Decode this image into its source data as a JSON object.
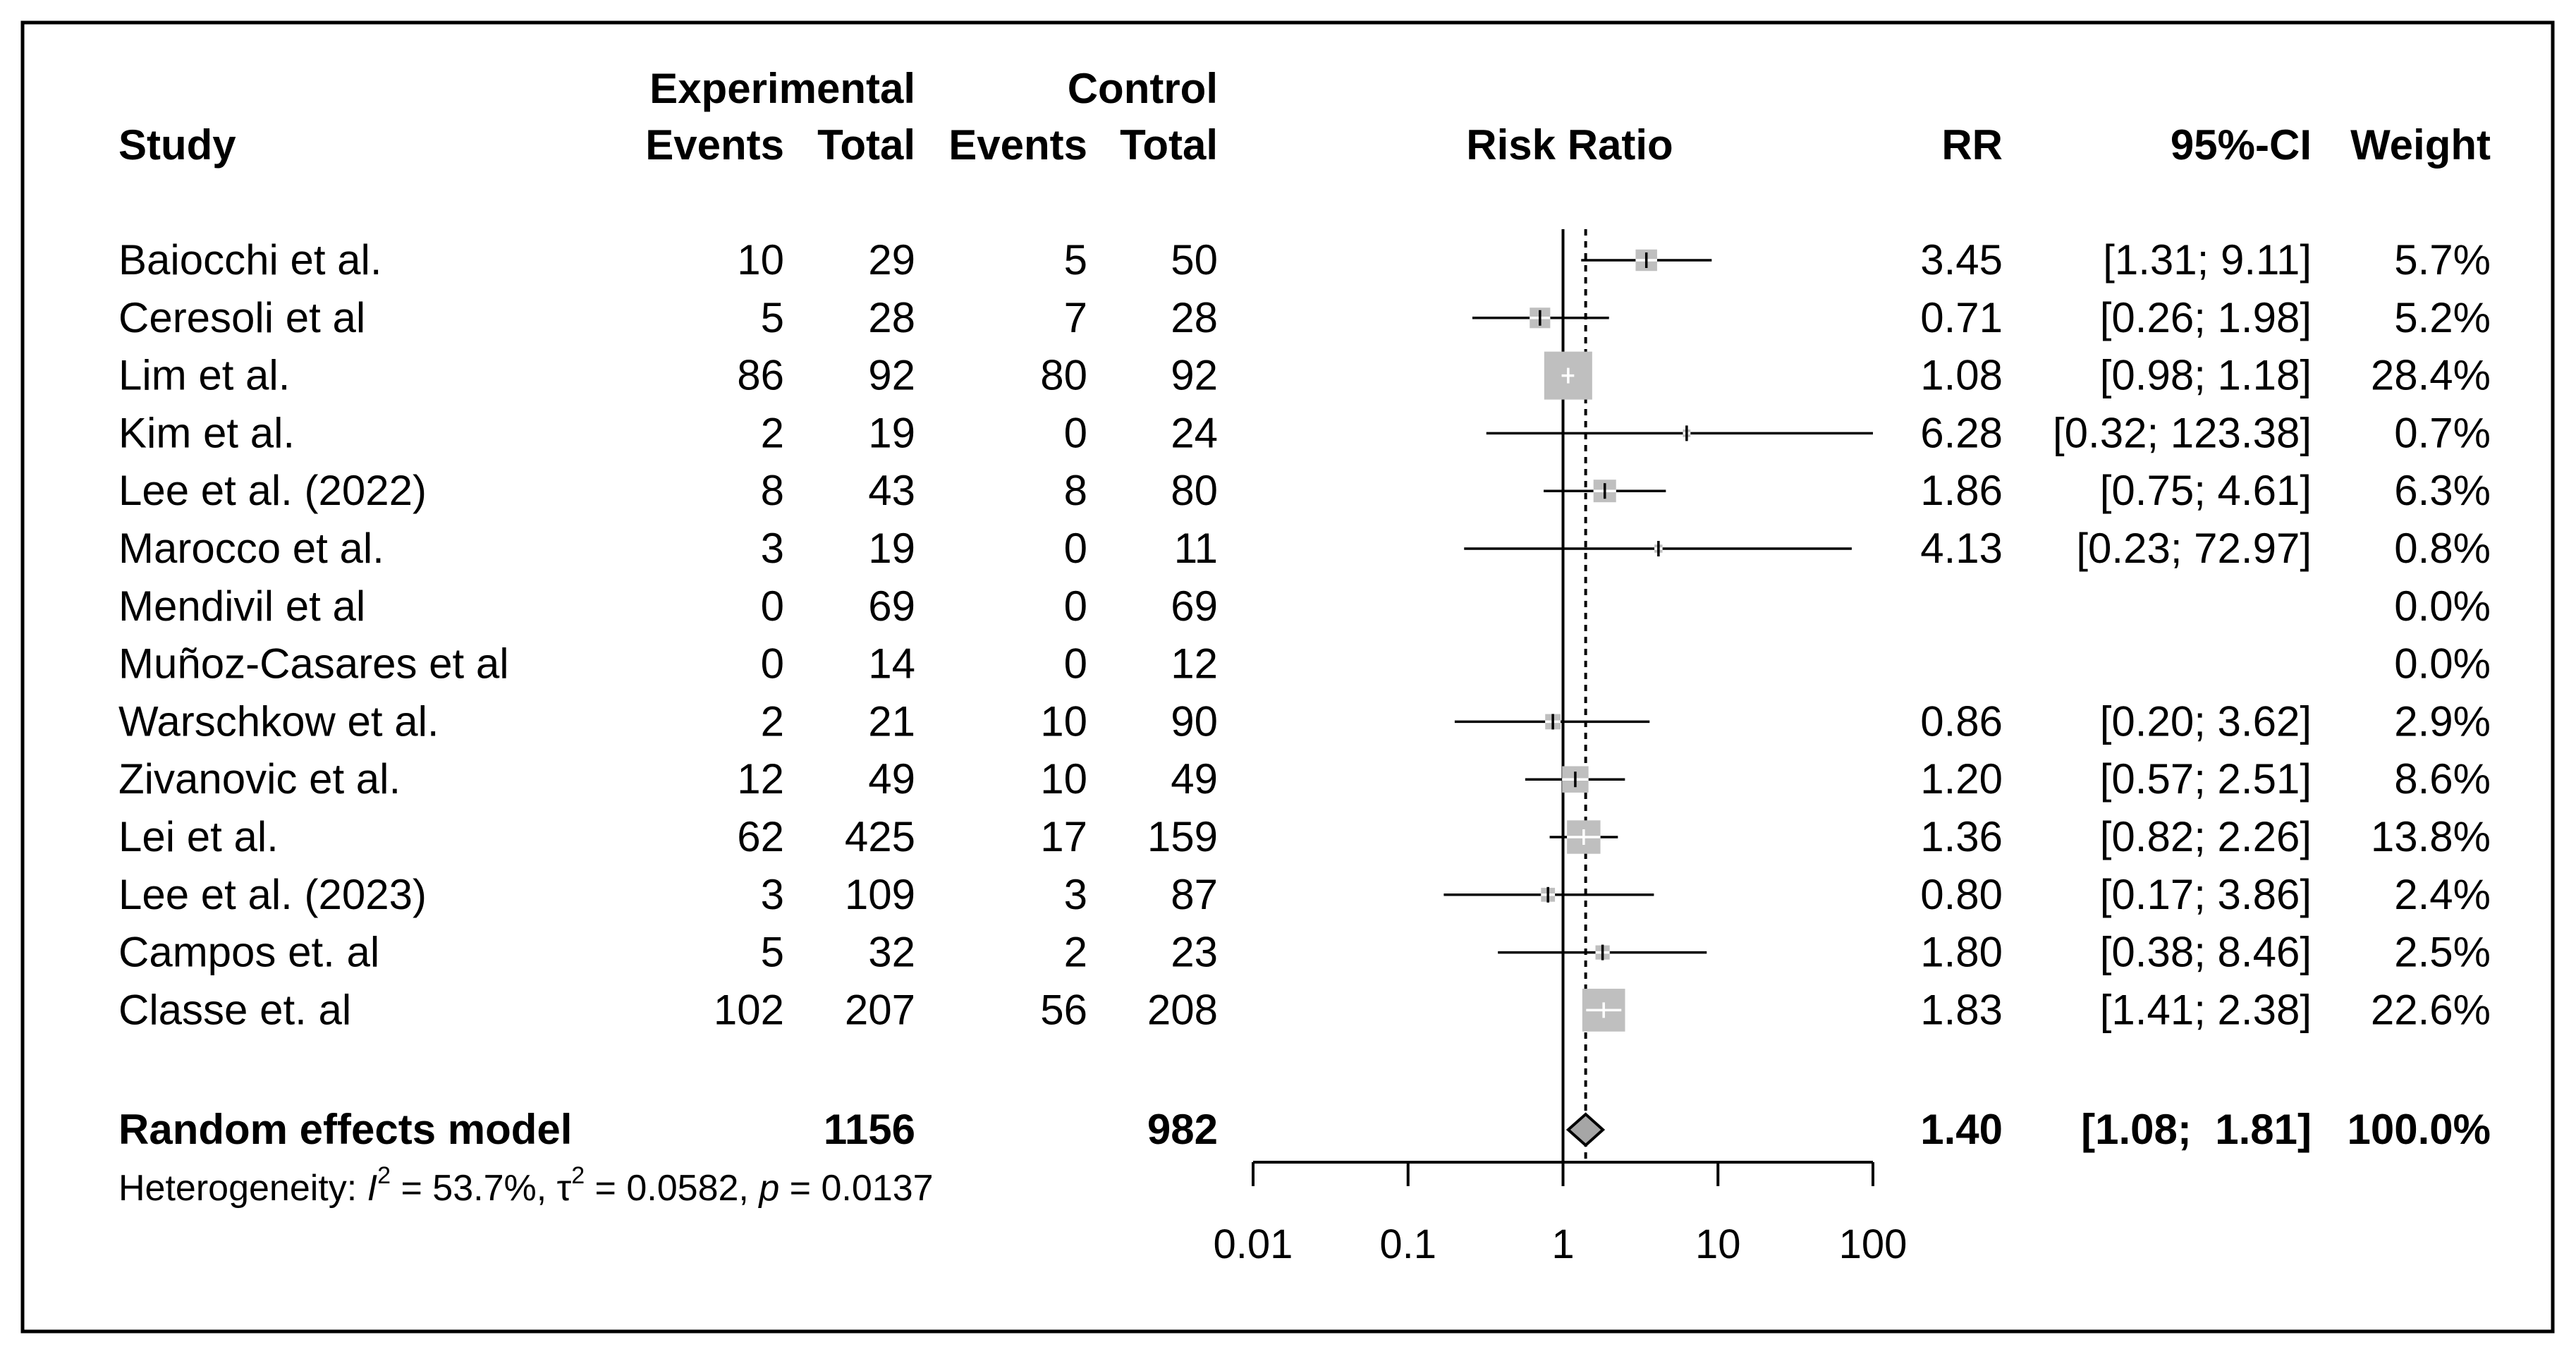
{
  "chart_data": {
    "type": "forest",
    "headers": {
      "study": "Study",
      "experimental": "Experimental",
      "control": "Control",
      "events": "Events",
      "total": "Total",
      "plot_title": "Risk Ratio",
      "rr": "RR",
      "ci": "95%-CI",
      "weight": "Weight"
    },
    "studies": [
      {
        "name": "Baiocchi et al.",
        "exp_events": "10",
        "exp_total": "29",
        "ctrl_events": "5",
        "ctrl_total": "50",
        "rr": 3.45,
        "lo": 1.31,
        "hi": 9.11,
        "rr_text": "3.45",
        "ci_text": "[1.31;  9.11]",
        "weight_text": "5.7%",
        "weight": 5.7
      },
      {
        "name": "Ceresoli et al",
        "exp_events": "5",
        "exp_total": "28",
        "ctrl_events": "7",
        "ctrl_total": "28",
        "rr": 0.71,
        "lo": 0.26,
        "hi": 1.98,
        "rr_text": "0.71",
        "ci_text": "[0.26;  1.98]",
        "weight_text": "5.2%",
        "weight": 5.2
      },
      {
        "name": "Lim et al.",
        "exp_events": "86",
        "exp_total": "92",
        "ctrl_events": "80",
        "ctrl_total": "92",
        "rr": 1.08,
        "lo": 0.98,
        "hi": 1.18,
        "rr_text": "1.08",
        "ci_text": "[0.98;  1.18]",
        "weight_text": "28.4%",
        "weight": 28.4
      },
      {
        "name": "Kim et al.",
        "exp_events": "2",
        "exp_total": "19",
        "ctrl_events": "0",
        "ctrl_total": "24",
        "rr": 6.28,
        "lo": 0.32,
        "hi": 123.38,
        "rr_text": "6.28",
        "ci_text": "[0.32; 123.38]",
        "weight_text": "0.7%",
        "weight": 0.7
      },
      {
        "name": "Lee et al. (2022)",
        "exp_events": "8",
        "exp_total": "43",
        "ctrl_events": "8",
        "ctrl_total": "80",
        "rr": 1.86,
        "lo": 0.75,
        "hi": 4.61,
        "rr_text": "1.86",
        "ci_text": "[0.75;  4.61]",
        "weight_text": "6.3%",
        "weight": 6.3
      },
      {
        "name": "Marocco et al.",
        "exp_events": "3",
        "exp_total": "19",
        "ctrl_events": "0",
        "ctrl_total": "11",
        "rr": 4.13,
        "lo": 0.23,
        "hi": 72.97,
        "rr_text": "4.13",
        "ci_text": "[0.23;  72.97]",
        "weight_text": "0.8%",
        "weight": 0.8
      },
      {
        "name": "Mendivil et al",
        "exp_events": "0",
        "exp_total": "69",
        "ctrl_events": "0",
        "ctrl_total": "69",
        "rr": null,
        "lo": null,
        "hi": null,
        "rr_text": "",
        "ci_text": "",
        "weight_text": "0.0%",
        "weight": 0
      },
      {
        "name": "Muñoz-Casares et al",
        "exp_events": "0",
        "exp_total": "14",
        "ctrl_events": "0",
        "ctrl_total": "12",
        "rr": null,
        "lo": null,
        "hi": null,
        "rr_text": "",
        "ci_text": "",
        "weight_text": "0.0%",
        "weight": 0
      },
      {
        "name": "Warschkow et al.",
        "exp_events": "2",
        "exp_total": "21",
        "ctrl_events": "10",
        "ctrl_total": "90",
        "rr": 0.86,
        "lo": 0.2,
        "hi": 3.62,
        "rr_text": "0.86",
        "ci_text": "[0.20;  3.62]",
        "weight_text": "2.9%",
        "weight": 2.9
      },
      {
        "name": "Zivanovic et al.",
        "exp_events": "12",
        "exp_total": "49",
        "ctrl_events": "10",
        "ctrl_total": "49",
        "rr": 1.2,
        "lo": 0.57,
        "hi": 2.51,
        "rr_text": "1.20",
        "ci_text": "[0.57;  2.51]",
        "weight_text": "8.6%",
        "weight": 8.6
      },
      {
        "name": "Lei et al.",
        "exp_events": "62",
        "exp_total": "425",
        "ctrl_events": "17",
        "ctrl_total": "159",
        "rr": 1.36,
        "lo": 0.82,
        "hi": 2.26,
        "rr_text": "1.36",
        "ci_text": "[0.82;  2.26]",
        "weight_text": "13.8%",
        "weight": 13.8
      },
      {
        "name": "Lee et al. (2023)",
        "exp_events": "3",
        "exp_total": "109",
        "ctrl_events": "3",
        "ctrl_total": "87",
        "rr": 0.8,
        "lo": 0.17,
        "hi": 3.86,
        "rr_text": "0.80",
        "ci_text": "[0.17;  3.86]",
        "weight_text": "2.4%",
        "weight": 2.4
      },
      {
        "name": "Campos et. al",
        "exp_events": "5",
        "exp_total": "32",
        "ctrl_events": "2",
        "ctrl_total": "23",
        "rr": 1.8,
        "lo": 0.38,
        "hi": 8.46,
        "rr_text": "1.80",
        "ci_text": "[0.38;  8.46]",
        "weight_text": "2.5%",
        "weight": 2.5
      },
      {
        "name": "Classe et. al",
        "exp_events": "102",
        "exp_total": "207",
        "ctrl_events": "56",
        "ctrl_total": "208",
        "rr": 1.83,
        "lo": 1.41,
        "hi": 2.38,
        "rr_text": "1.83",
        "ci_text": "[1.41;  2.38]",
        "weight_text": "22.6%",
        "weight": 22.6
      }
    ],
    "summary": {
      "label": "Random effects model",
      "exp_total": "1156",
      "ctrl_total": "982",
      "rr": 1.4,
      "lo": 1.08,
      "hi": 1.81,
      "rr_text": "1.40",
      "ci_text": "[1.08;  1.81]",
      "weight_text": "100.0%"
    },
    "heterogeneity": {
      "prefix": "Heterogeneity: ",
      "i2_symbol": "I",
      "sup": "2",
      "i2_value": " = 53.7%, ",
      "tau2_symbol": "τ",
      "tau2_value": " = 0.0582, ",
      "p_symbol": "p",
      "p_value": " = 0.0137"
    },
    "x_axis": {
      "scale": "log10",
      "xlim": [
        0.01,
        100
      ],
      "ticks": [
        0.01,
        0.1,
        1,
        10,
        100
      ],
      "tick_labels": [
        "0.01",
        "0.1",
        "1",
        "10",
        "100"
      ],
      "reference_line": 1
    },
    "colors": {
      "square": "#bfbfbf",
      "diamond": "#a6a6a6",
      "line": "#000000",
      "border": "#000000"
    }
  }
}
